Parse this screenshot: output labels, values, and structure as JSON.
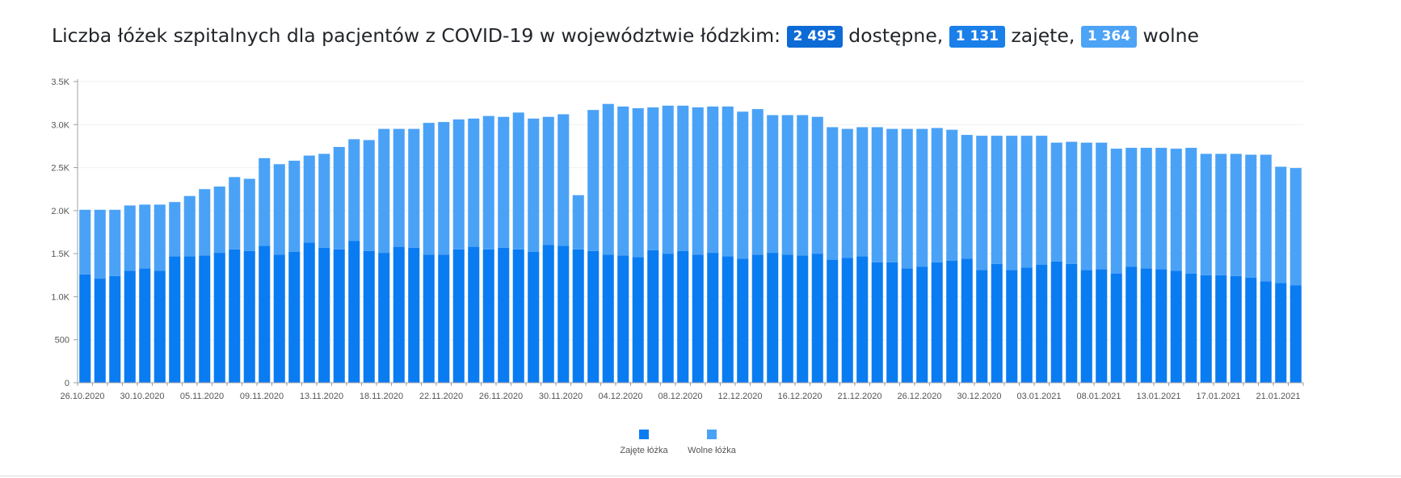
{
  "headline": {
    "prefix": "Liczba łóżek szpitalnych dla pacjentów z COVID-19 w województwie łódzkim:",
    "total_value": "2 495",
    "total_label": "dostępne,",
    "occupied_value": "1 131",
    "occupied_label": "zajęte,",
    "free_value": "1 364",
    "free_label": "wolne"
  },
  "colors": {
    "occupied": "#0a7cf2",
    "free": "#4aa2f7",
    "badge_total": "#0d6bd6",
    "badge_occupied": "#1a7fe8",
    "badge_free": "#4da3f5"
  },
  "chart_data": {
    "type": "bar",
    "stacked": true,
    "ylim": [
      0,
      3500
    ],
    "yticks": [
      0,
      500,
      1000,
      1500,
      2000,
      2500,
      3000,
      3500
    ],
    "ytick_labels": [
      "0",
      "500",
      "1.0K",
      "1.5K",
      "2.0K",
      "2.5K",
      "3.0K",
      "3.5K"
    ],
    "xtick_labels": [
      {
        "index": 0,
        "label": "26.10.2020"
      },
      {
        "index": 4,
        "label": "30.10.2020"
      },
      {
        "index": 8,
        "label": "05.11.2020"
      },
      {
        "index": 12,
        "label": "09.11.2020"
      },
      {
        "index": 16,
        "label": "13.11.2020"
      },
      {
        "index": 20,
        "label": "18.11.2020"
      },
      {
        "index": 24,
        "label": "22.11.2020"
      },
      {
        "index": 28,
        "label": "26.11.2020"
      },
      {
        "index": 32,
        "label": "30.11.2020"
      },
      {
        "index": 36,
        "label": "04.12.2020"
      },
      {
        "index": 40,
        "label": "08.12.2020"
      },
      {
        "index": 44,
        "label": "12.12.2020"
      },
      {
        "index": 48,
        "label": "16.12.2020"
      },
      {
        "index": 52,
        "label": "21.12.2020"
      },
      {
        "index": 56,
        "label": "26.12.2020"
      },
      {
        "index": 60,
        "label": "30.12.2020"
      },
      {
        "index": 64,
        "label": "03.01.2021"
      },
      {
        "index": 68,
        "label": "08.01.2021"
      },
      {
        "index": 72,
        "label": "13.01.2021"
      },
      {
        "index": 76,
        "label": "17.01.2021"
      },
      {
        "index": 80,
        "label": "21.01.2021"
      }
    ],
    "grid": true,
    "legend_position": "bottom-center",
    "series": [
      {
        "name": "Zajęte łóżka",
        "values": [
          1260,
          1210,
          1240,
          1300,
          1330,
          1300,
          1470,
          1470,
          1480,
          1510,
          1550,
          1530,
          1590,
          1490,
          1520,
          1630,
          1570,
          1550,
          1650,
          1530,
          1510,
          1580,
          1570,
          1490,
          1490,
          1550,
          1580,
          1550,
          1570,
          1550,
          1520,
          1600,
          1590,
          1550,
          1530,
          1490,
          1480,
          1460,
          1540,
          1500,
          1530,
          1490,
          1510,
          1470,
          1440,
          1490,
          1510,
          1490,
          1480,
          1500,
          1430,
          1450,
          1470,
          1400,
          1400,
          1330,
          1350,
          1400,
          1420,
          1440,
          1310,
          1380,
          1310,
          1340,
          1370,
          1410,
          1380,
          1310,
          1320,
          1270,
          1350,
          1330,
          1320,
          1300,
          1270,
          1250,
          1250,
          1240,
          1220,
          1180,
          1160,
          1131
        ]
      },
      {
        "name": "Wolne łóżka",
        "values": [
          750,
          800,
          770,
          760,
          740,
          770,
          630,
          700,
          770,
          770,
          840,
          840,
          1020,
          1050,
          1060,
          1010,
          1090,
          1190,
          1180,
          1290,
          1440,
          1370,
          1380,
          1530,
          1540,
          1510,
          1490,
          1550,
          1520,
          1590,
          1550,
          1490,
          1530,
          630,
          1640,
          1750,
          1730,
          1730,
          1660,
          1720,
          1690,
          1710,
          1700,
          1740,
          1710,
          1690,
          1600,
          1620,
          1630,
          1590,
          1540,
          1500,
          1500,
          1570,
          1550,
          1620,
          1600,
          1560,
          1520,
          1440,
          1560,
          1490,
          1560,
          1530,
          1500,
          1380,
          1420,
          1480,
          1470,
          1450,
          1380,
          1400,
          1410,
          1420,
          1460,
          1410,
          1410,
          1420,
          1430,
          1470,
          1350,
          1364
        ]
      }
    ]
  }
}
